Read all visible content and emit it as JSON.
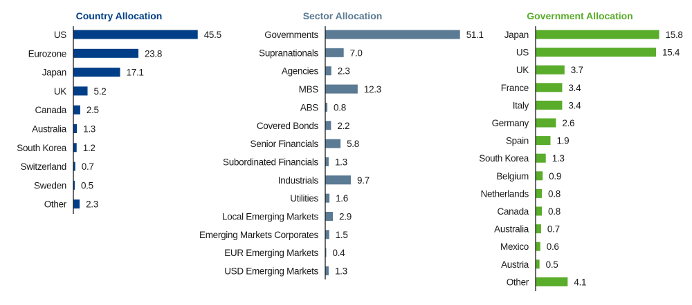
{
  "chart_data": [
    {
      "type": "bar",
      "orientation": "horizontal",
      "title": "Country Allocation",
      "color": "#003f87",
      "categories": [
        "US",
        "Eurozone",
        "Japan",
        "UK",
        "Canada",
        "Australia",
        "South Korea",
        "Switzerland",
        "Sweden",
        "Other"
      ],
      "values": [
        45.5,
        23.8,
        17.1,
        5.2,
        2.5,
        1.3,
        1.2,
        0.7,
        0.5,
        2.3
      ],
      "value_labels": [
        "45.5",
        "23.8",
        "17.1",
        "5.2",
        "2.5",
        "1.3",
        "1.2",
        "0.7",
        "0.5",
        "2.3"
      ],
      "grid": false,
      "legend": "none"
    },
    {
      "type": "bar",
      "orientation": "horizontal",
      "title": "Sector Allocation",
      "color": "#5b7a93",
      "categories": [
        "Governments",
        "Supranationals",
        "Agencies",
        "MBS",
        "ABS",
        "Covered Bonds",
        "Senior Financials",
        "Subordinated Financials",
        "Industrials",
        "Utilities",
        "Local Emerging Markets",
        "Emerging Markets Corporates",
        "EUR Emerging Markets",
        "USD Emerging Markets"
      ],
      "values": [
        51.1,
        7.0,
        2.3,
        12.3,
        0.8,
        2.2,
        5.8,
        1.3,
        9.7,
        1.6,
        2.9,
        1.5,
        0.4,
        1.3
      ],
      "value_labels": [
        "51.1",
        "7.0",
        "2.3",
        "12.3",
        "0.8",
        "2.2",
        "5.8",
        "1.3",
        "9.7",
        "1.6",
        "2.9",
        "1.5",
        "0.4",
        "1.3"
      ],
      "grid": false,
      "legend": "none"
    },
    {
      "type": "bar",
      "orientation": "horizontal",
      "title": "Government Allocation",
      "color": "#5aac2b",
      "categories": [
        "Japan",
        "US",
        "UK",
        "France",
        "Italy",
        "Germany",
        "Spain",
        "South Korea",
        "Belgium",
        "Netherlands",
        "Canada",
        "Australia",
        "Mexico",
        "Austria",
        "Other"
      ],
      "values": [
        15.8,
        15.4,
        3.7,
        3.4,
        3.4,
        2.6,
        1.9,
        1.3,
        0.9,
        0.8,
        0.8,
        0.7,
        0.6,
        0.5,
        4.1
      ],
      "value_labels": [
        "15.8",
        "15.4",
        "3.7",
        "3.4",
        "3.4",
        "2.6",
        "1.9",
        "1.3",
        "0.9",
        "0.8",
        "0.8",
        "0.7",
        "0.6",
        "0.5",
        "4.1"
      ],
      "grid": false,
      "legend": "none"
    }
  ]
}
